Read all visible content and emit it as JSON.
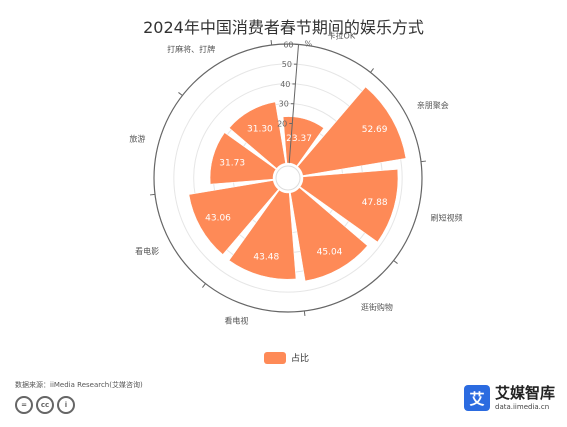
{
  "title": "2024年中国消费者春节期间的娱乐方式",
  "chart_data": {
    "type": "bar",
    "subtype": "polar-radial",
    "title": "2024年中国消费者春节期间的娱乐方式",
    "unit": "%",
    "categories": [
      "卡拉OK",
      "亲朋聚会",
      "刷短视频",
      "逛街购物",
      "看电视",
      "看电影",
      "旅游",
      "打麻将、打牌"
    ],
    "series": [
      {
        "name": "占比",
        "values": [
          23.37,
          52.69,
          47.88,
          45.04,
          43.48,
          43.06,
          31.73,
          31.3
        ],
        "color": "#fe8a57"
      }
    ],
    "radial_axis": {
      "min": 0,
      "max": 60,
      "ticks": [
        20,
        30,
        40,
        50,
        60
      ]
    },
    "legend": "bottom-center"
  },
  "legend_label": "占比",
  "source": "数据来源：iiMedia Research(艾媒咨询)",
  "license_icons": [
    "=",
    "cc",
    "i"
  ],
  "brand": {
    "name": "艾媒智库",
    "url": "data.iimedia.cn",
    "logo_char": "艾"
  }
}
